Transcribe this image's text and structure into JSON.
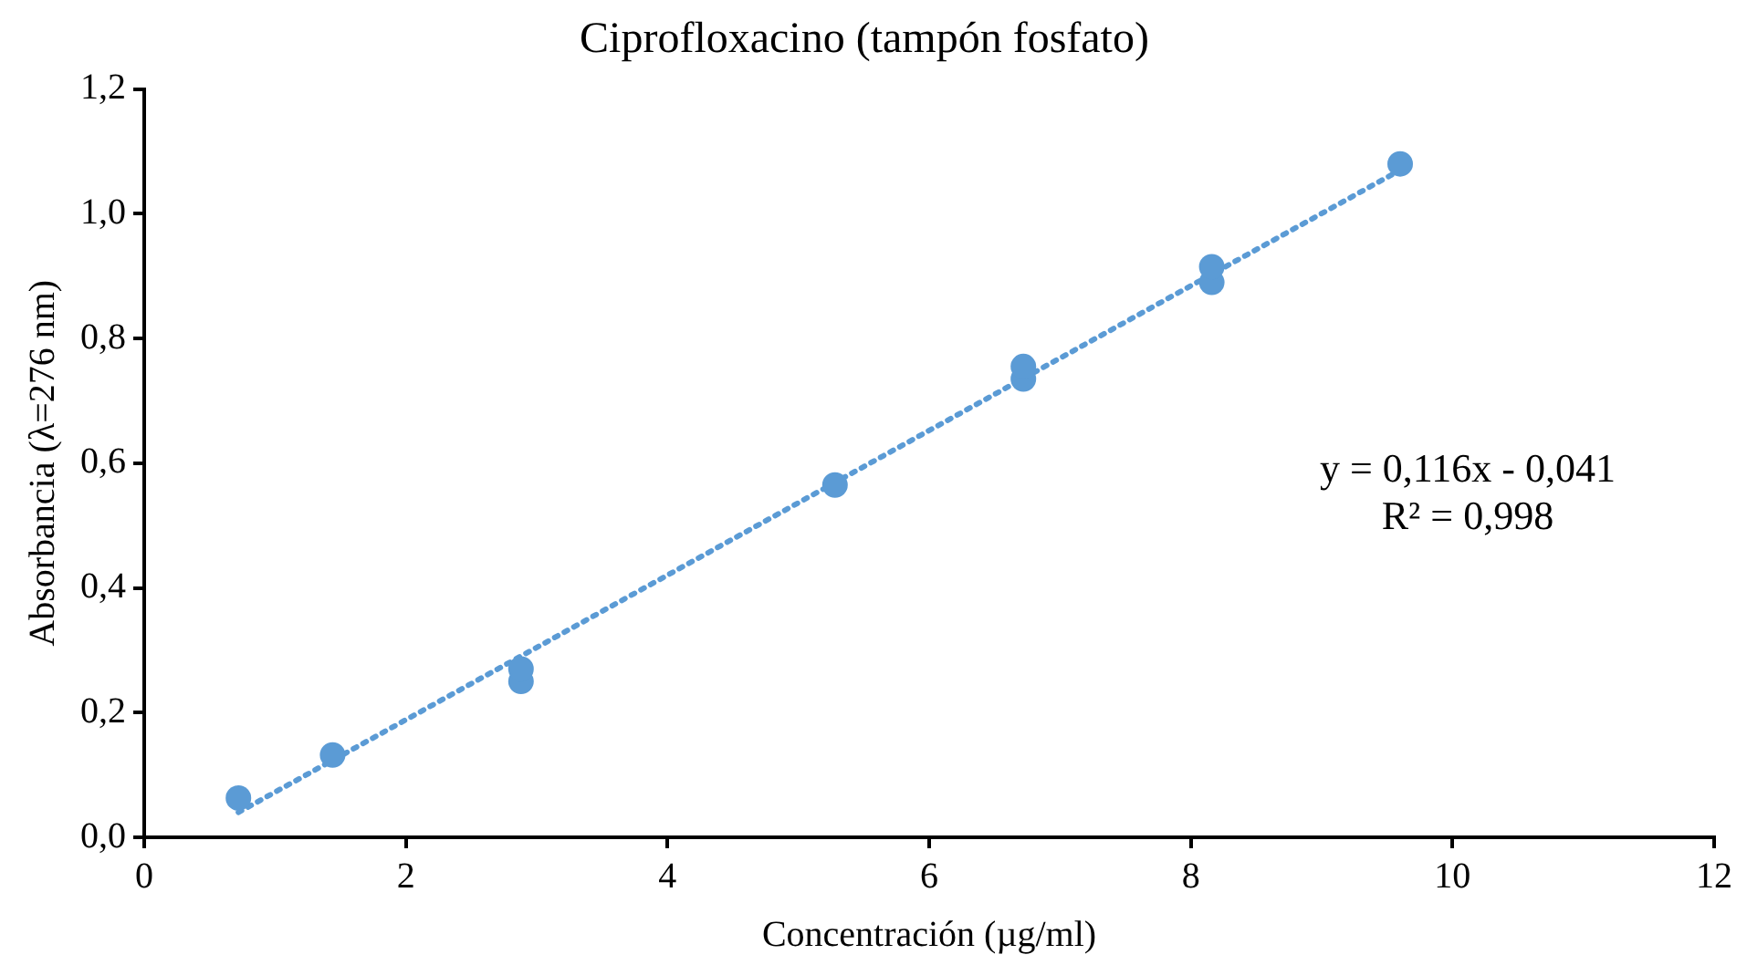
{
  "chart_data": {
    "type": "scatter",
    "title": "Ciprofloxacino (tampón fosfato)",
    "xlabel": "Concentración (µg/ml)",
    "ylabel": "Absorbancia (λ=276 nm)",
    "xlim": [
      0,
      12
    ],
    "xticks": [
      0,
      2,
      4,
      6,
      8,
      10,
      12
    ],
    "ylim": [
      0,
      1.2
    ],
    "yticks": [
      {
        "value": 0,
        "label": "0,0"
      },
      {
        "value": 0.2,
        "label": "0,2"
      },
      {
        "value": 0.4,
        "label": "0,4"
      },
      {
        "value": 0.6,
        "label": "0,6"
      },
      {
        "value": 0.8,
        "label": "0,8"
      },
      {
        "value": 1,
        "label": "1,0"
      },
      {
        "value": 1.2,
        "label": "1,2"
      }
    ],
    "grid": false,
    "legend": false,
    "series": [
      {
        "type": "scatter",
        "color": "#5b9bd5",
        "marker": "circle",
        "x": [
          0.72,
          1.44,
          2.88,
          2.88,
          5.28,
          6.72,
          6.72,
          8.16,
          8.16,
          9.6
        ],
        "values": [
          0.063,
          0.132,
          0.25,
          0.27,
          0.565,
          0.735,
          0.755,
          0.89,
          0.915,
          1.08
        ]
      },
      {
        "type": "line",
        "color": "#5b9bd5",
        "marker": "none",
        "line_style": "dotted",
        "x": [
          0.72,
          9.6
        ],
        "values": [
          0.04,
          1.07
        ]
      }
    ],
    "annotations": [
      "y = 0,116x - 0,041",
      "R² = 0,998"
    ]
  }
}
